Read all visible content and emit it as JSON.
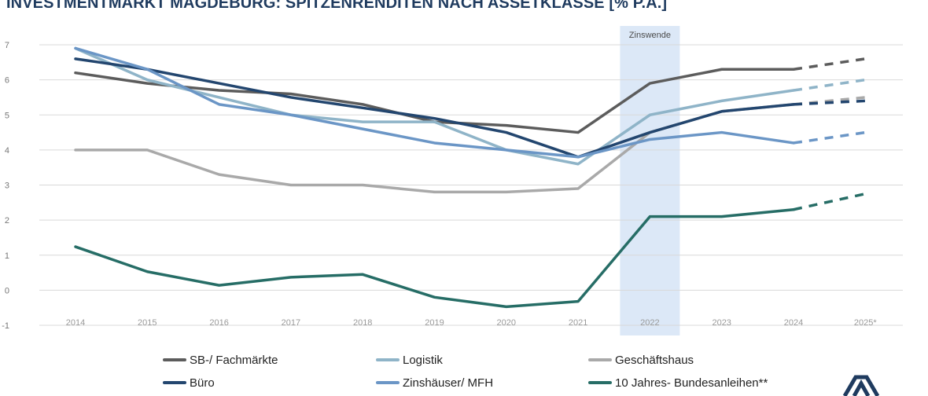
{
  "chart_data": {
    "type": "line",
    "title": "INVESTMENTMARKT MAGDEBURG: SPITZENRENDITEN NACH ASSETKLASSE [% P.A.]",
    "x": [
      "2014",
      "2015",
      "2016",
      "2017",
      "2018",
      "2019",
      "2020",
      "2021",
      "2022",
      "2023",
      "2024",
      "2025*"
    ],
    "ylim": [
      -1,
      7
    ],
    "yticks": [
      "7",
      "6",
      "5",
      "4",
      "3",
      "2",
      "1",
      "0",
      "-1"
    ],
    "grid": true,
    "legend_position": "bottom",
    "annotation": {
      "label": "Zinswende",
      "x_category": "2022",
      "color": "#dce8f7"
    },
    "forecast_from": "2024",
    "series": [
      {
        "name": "SB-/ Fachmärkte",
        "color": "#5c5c5c",
        "values": [
          6.2,
          5.9,
          5.7,
          5.6,
          5.3,
          4.8,
          4.7,
          4.5,
          5.9,
          6.3,
          6.3,
          6.6
        ]
      },
      {
        "name": "Logistik",
        "color": "#8fb4c8",
        "values": [
          6.9,
          6.0,
          5.5,
          5.0,
          4.8,
          4.8,
          4.0,
          3.6,
          5.0,
          5.4,
          5.7,
          6.0
        ]
      },
      {
        "name": "Geschäftshaus",
        "color": "#a9a9a9",
        "values": [
          4.0,
          4.0,
          3.3,
          3.0,
          3.0,
          2.8,
          2.8,
          2.9,
          4.5,
          5.1,
          5.3,
          5.5
        ]
      },
      {
        "name": "Büro",
        "color": "#23466f",
        "values": [
          6.6,
          6.3,
          5.9,
          5.5,
          5.2,
          4.9,
          4.5,
          3.8,
          4.5,
          5.1,
          5.3,
          5.4
        ]
      },
      {
        "name": "Zinshäuser/ MFH",
        "color": "#6b96c6",
        "values": [
          6.9,
          6.3,
          5.3,
          5.0,
          4.6,
          4.2,
          4.0,
          3.8,
          4.3,
          4.5,
          4.2,
          4.5
        ]
      },
      {
        "name": "10 Jahres- Bundesanleihen**",
        "color": "#266d66",
        "values": [
          1.24,
          0.53,
          0.14,
          0.37,
          0.45,
          -0.2,
          -0.47,
          -0.32,
          2.1,
          2.1,
          2.3,
          2.75
        ]
      }
    ]
  },
  "logo": {
    "icon": "company-logo-icon",
    "color": "#1f3b5f"
  }
}
